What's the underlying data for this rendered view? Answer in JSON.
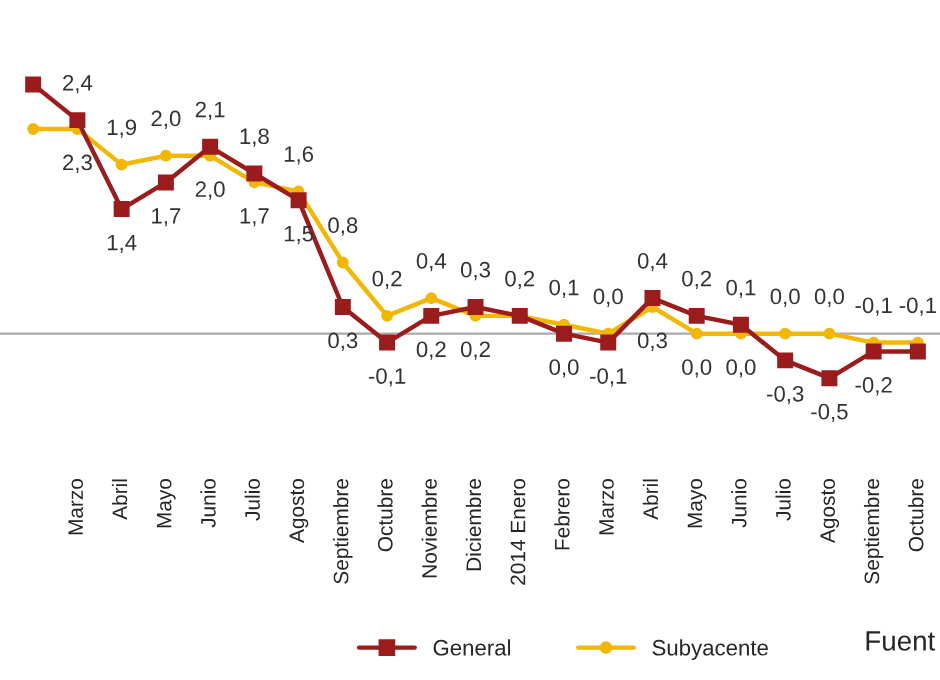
{
  "chart_data": {
    "type": "line",
    "categories": [
      null,
      "Marzo",
      "Abril",
      "Mayo",
      "Junio",
      "Julio",
      "Agosto",
      "Septiembre",
      "Octubre",
      "Noviembre",
      "Diciembre",
      "2014 Enero",
      "Febrero",
      "Marzo",
      "Abril",
      "Mayo",
      "Junio",
      "Julio",
      "Agosto",
      "Septiembre",
      "Octubre"
    ],
    "series": [
      {
        "name": "General",
        "color": "#9b1c1c",
        "marker": "square",
        "values": [
          2.8,
          2.4,
          1.4,
          1.7,
          2.1,
          1.8,
          1.5,
          0.3,
          -0.1,
          0.2,
          0.3,
          0.2,
          0.0,
          -0.1,
          0.4,
          0.2,
          0.1,
          -0.3,
          -0.5,
          -0.2,
          -0.2
        ],
        "value_labels": [
          null,
          "2,4",
          "1,4",
          "1,7",
          "2,1",
          "1,8",
          "1,5",
          "0,3",
          "-0,1",
          "0,2",
          "0,3",
          "0,2",
          "0,0",
          "-0,1",
          "0,4",
          "0,2",
          "0,1",
          "-0,3",
          "-0,5",
          "-0,2",
          null
        ]
      },
      {
        "name": "Subyacente",
        "color": "#f2b705",
        "marker": "circle",
        "values": [
          2.3,
          2.3,
          1.9,
          2.0,
          2.0,
          1.7,
          1.6,
          0.8,
          0.2,
          0.4,
          0.2,
          0.2,
          0.1,
          0.0,
          0.3,
          0.0,
          0.0,
          0.0,
          0.0,
          -0.1,
          -0.1
        ],
        "value_labels": [
          null,
          "2,3",
          "1,9",
          "2,0",
          "2,0",
          "1,7",
          "1,6",
          "0,8",
          "0,2",
          "0,4",
          "0,2",
          null,
          "0,1",
          "0,0",
          "0,3",
          "0,0",
          "0,0",
          "0,0",
          "0,0",
          "-0,1",
          "-0,1"
        ]
      }
    ],
    "legend": "bottom",
    "annotations": [
      "Fuent"
    ]
  }
}
